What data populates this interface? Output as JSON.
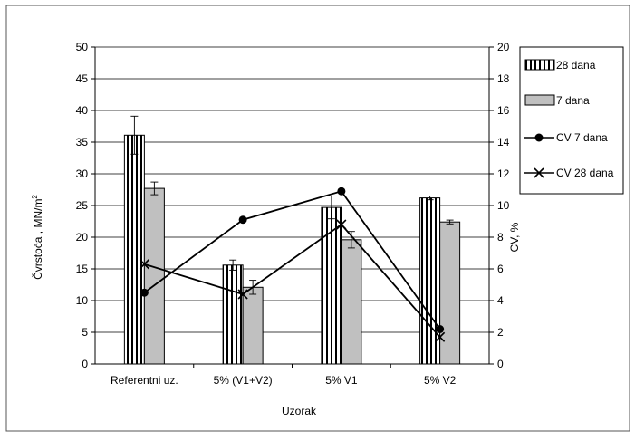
{
  "chart_data": {
    "type": "bar",
    "xlabel": "Uzorak",
    "ylabel_left": "Čvrstoća , MN/m",
    "ylabel_left_sup": "2",
    "ylabel_right": "CV, %",
    "y_left_lim": [
      0,
      50
    ],
    "y_left_ticks": [
      "0",
      "5",
      "10",
      "15",
      "20",
      "25",
      "30",
      "35",
      "40",
      "45",
      "50"
    ],
    "y_right_lim": [
      0,
      20
    ],
    "y_right_ticks": [
      "0",
      "2",
      "4",
      "6",
      "8",
      "10",
      "12",
      "14",
      "16",
      "18",
      "20"
    ],
    "grid": true,
    "legend_position": "right",
    "categories": [
      "Referentni uz.",
      "5% (V1+V2)",
      "5% V1",
      "5% V2"
    ],
    "bar_series": [
      {
        "name": "28 dana",
        "values": [
          36.1,
          15.6,
          24.7,
          26.2
        ],
        "errors": [
          3.0,
          0.8,
          1.8,
          0.3
        ],
        "pattern": "vertical-stripes"
      },
      {
        "name": "7 dana",
        "values": [
          27.7,
          12.1,
          19.6,
          22.4
        ],
        "errors": [
          1.0,
          1.1,
          1.3,
          0.3
        ],
        "color": "#c0c0c0"
      }
    ],
    "line_series": [
      {
        "name": "CV 7 dana",
        "axis": "right",
        "marker": "circle",
        "values": [
          4.5,
          9.1,
          10.9,
          2.2
        ]
      },
      {
        "name": "CV 28 dana",
        "axis": "right",
        "marker": "x",
        "values": [
          6.3,
          4.4,
          8.8,
          1.7
        ]
      }
    ]
  }
}
